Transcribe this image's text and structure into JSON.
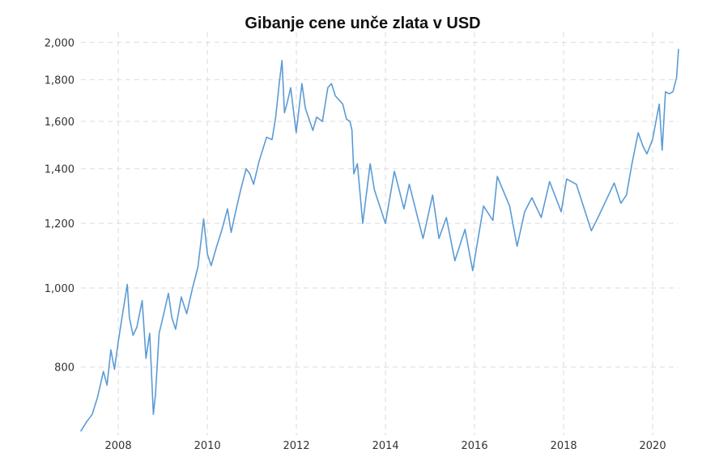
{
  "chart_data": {
    "type": "line",
    "title": "Gibanje cene unče zlata v USD",
    "xlabel": "",
    "ylabel": "",
    "y_scale": "log",
    "ylim": [
      660,
      2020
    ],
    "xlim": [
      "2007-03-01",
      "2020-07-31"
    ],
    "grid": true,
    "legend": "none",
    "line_color": "#5b9bd5",
    "x_ticks": [
      {
        "label": "2008",
        "date": "2008-01-01"
      },
      {
        "label": "2010",
        "date": "2010-01-01"
      },
      {
        "label": "2012",
        "date": "2012-01-01"
      },
      {
        "label": "2014",
        "date": "2014-01-01"
      },
      {
        "label": "2016",
        "date": "2016-01-01"
      },
      {
        "label": "2018",
        "date": "2018-01-01"
      },
      {
        "label": "2020",
        "date": "2020-01-01"
      }
    ],
    "y_ticks": [
      {
        "label": "800",
        "value": 800
      },
      {
        "label": "1,000",
        "value": 1000
      },
      {
        "label": "1,200",
        "value": 1200
      },
      {
        "label": "1,400",
        "value": 1400
      },
      {
        "label": "1,600",
        "value": 1600
      },
      {
        "label": "1,800",
        "value": 1800
      },
      {
        "label": "2,000",
        "value": 2000
      }
    ],
    "series": [
      {
        "points": [
          [
            "2007-03-01",
            668
          ],
          [
            "2007-04-15",
            685
          ],
          [
            "2007-06-01",
            700
          ],
          [
            "2007-07-15",
            735
          ],
          [
            "2007-09-01",
            790
          ],
          [
            "2007-10-01",
            760
          ],
          [
            "2007-11-01",
            840
          ],
          [
            "2007-12-01",
            795
          ],
          [
            "2008-01-01",
            860
          ],
          [
            "2008-02-01",
            920
          ],
          [
            "2008-03-15",
            1010
          ],
          [
            "2008-04-01",
            920
          ],
          [
            "2008-05-01",
            875
          ],
          [
            "2008-06-01",
            895
          ],
          [
            "2008-07-15",
            965
          ],
          [
            "2008-08-15",
            820
          ],
          [
            "2008-09-15",
            880
          ],
          [
            "2008-10-15",
            700
          ],
          [
            "2008-11-01",
            740
          ],
          [
            "2008-12-01",
            880
          ],
          [
            "2009-01-01",
            920
          ],
          [
            "2009-02-15",
            985
          ],
          [
            "2009-03-15",
            920
          ],
          [
            "2009-04-15",
            890
          ],
          [
            "2009-06-01",
            975
          ],
          [
            "2009-07-15",
            930
          ],
          [
            "2009-09-01",
            1000
          ],
          [
            "2009-10-15",
            1060
          ],
          [
            "2009-12-01",
            1215
          ],
          [
            "2010-01-01",
            1100
          ],
          [
            "2010-02-01",
            1065
          ],
          [
            "2010-03-15",
            1120
          ],
          [
            "2010-05-01",
            1180
          ],
          [
            "2010-06-15",
            1250
          ],
          [
            "2010-07-15",
            1170
          ],
          [
            "2010-08-15",
            1230
          ],
          [
            "2010-10-01",
            1320
          ],
          [
            "2010-11-15",
            1400
          ],
          [
            "2010-12-15",
            1380
          ],
          [
            "2011-01-15",
            1340
          ],
          [
            "2011-03-01",
            1430
          ],
          [
            "2011-05-01",
            1530
          ],
          [
            "2011-06-15",
            1520
          ],
          [
            "2011-07-15",
            1620
          ],
          [
            "2011-08-15",
            1790
          ],
          [
            "2011-09-05",
            1900
          ],
          [
            "2011-09-25",
            1640
          ],
          [
            "2011-10-15",
            1680
          ],
          [
            "2011-11-15",
            1760
          ],
          [
            "2011-12-30",
            1550
          ],
          [
            "2012-02-15",
            1780
          ],
          [
            "2012-03-15",
            1660
          ],
          [
            "2012-05-15",
            1560
          ],
          [
            "2012-06-15",
            1620
          ],
          [
            "2012-08-01",
            1600
          ],
          [
            "2012-09-15",
            1760
          ],
          [
            "2012-10-15",
            1780
          ],
          [
            "2012-11-15",
            1720
          ],
          [
            "2012-12-15",
            1700
          ],
          [
            "2013-01-15",
            1680
          ],
          [
            "2013-02-15",
            1610
          ],
          [
            "2013-03-15",
            1600
          ],
          [
            "2013-04-01",
            1560
          ],
          [
            "2013-04-16",
            1380
          ],
          [
            "2013-05-15",
            1420
          ],
          [
            "2013-06-28",
            1200
          ],
          [
            "2013-08-28",
            1420
          ],
          [
            "2013-10-01",
            1320
          ],
          [
            "2013-12-31",
            1200
          ],
          [
            "2014-03-15",
            1390
          ],
          [
            "2014-06-01",
            1250
          ],
          [
            "2014-07-15",
            1340
          ],
          [
            "2014-09-15",
            1230
          ],
          [
            "2014-11-05",
            1150
          ],
          [
            "2015-01-22",
            1300
          ],
          [
            "2015-03-15",
            1150
          ],
          [
            "2015-05-15",
            1220
          ],
          [
            "2015-07-24",
            1080
          ],
          [
            "2015-10-15",
            1180
          ],
          [
            "2015-12-17",
            1050
          ],
          [
            "2016-03-15",
            1260
          ],
          [
            "2016-05-30",
            1210
          ],
          [
            "2016-07-06",
            1370
          ],
          [
            "2016-10-15",
            1260
          ],
          [
            "2016-12-15",
            1125
          ],
          [
            "2017-02-15",
            1240
          ],
          [
            "2017-04-15",
            1290
          ],
          [
            "2017-07-01",
            1220
          ],
          [
            "2017-09-08",
            1350
          ],
          [
            "2017-12-12",
            1240
          ],
          [
            "2018-01-25",
            1360
          ],
          [
            "2018-04-15",
            1340
          ],
          [
            "2018-08-16",
            1175
          ],
          [
            "2018-10-15",
            1225
          ],
          [
            "2019-02-20",
            1345
          ],
          [
            "2019-04-15",
            1270
          ],
          [
            "2019-05-31",
            1300
          ],
          [
            "2019-07-15",
            1420
          ],
          [
            "2019-09-04",
            1550
          ],
          [
            "2019-10-15",
            1490
          ],
          [
            "2019-11-15",
            1460
          ],
          [
            "2019-12-31",
            1520
          ],
          [
            "2020-02-24",
            1680
          ],
          [
            "2020-03-19",
            1475
          ],
          [
            "2020-04-15",
            1740
          ],
          [
            "2020-05-15",
            1730
          ],
          [
            "2020-06-15",
            1740
          ],
          [
            "2020-07-15",
            1810
          ],
          [
            "2020-07-31",
            1960
          ]
        ]
      }
    ]
  }
}
